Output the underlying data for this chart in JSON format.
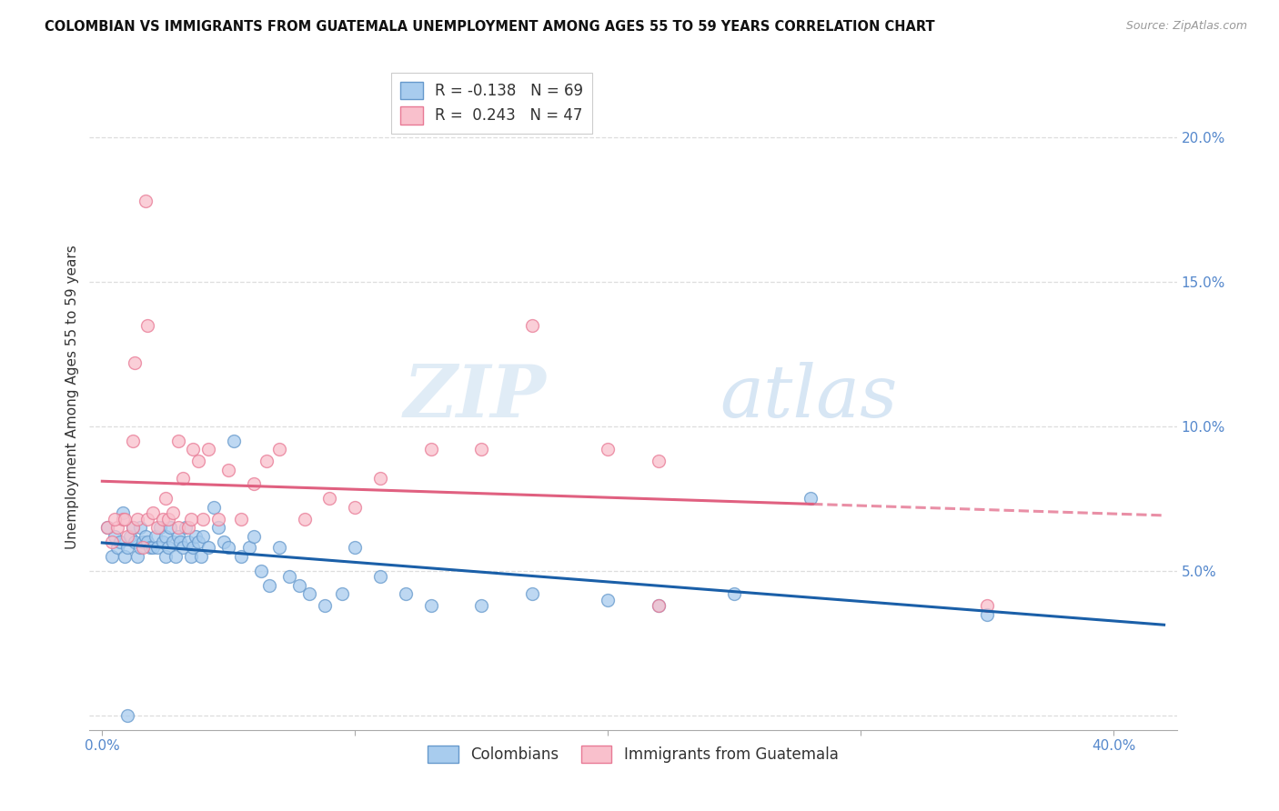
{
  "title": "COLOMBIAN VS IMMIGRANTS FROM GUATEMALA UNEMPLOYMENT AMONG AGES 55 TO 59 YEARS CORRELATION CHART",
  "source": "Source: ZipAtlas.com",
  "xlabel_ticks": [
    "0.0%",
    "",
    "",
    "",
    "40.0%"
  ],
  "xlabel_tick_vals": [
    0.0,
    0.1,
    0.2,
    0.3,
    0.4
  ],
  "ylabel": "Unemployment Among Ages 55 to 59 years",
  "ylabel_ticks": [
    "20.0%",
    "15.0%",
    "10.0%",
    "5.0%",
    ""
  ],
  "ylabel_tick_vals": [
    0.2,
    0.15,
    0.1,
    0.05,
    0.0
  ],
  "ylim": [
    -0.005,
    0.225
  ],
  "xlim": [
    -0.005,
    0.425
  ],
  "colombians_R": -0.138,
  "colombians_N": 69,
  "guatemala_R": 0.243,
  "guatemala_N": 47,
  "colombian_color": "#a8ccee",
  "colombian_edge": "#6699cc",
  "guatemala_color": "#f9c0cc",
  "guatemala_edge": "#e87a95",
  "colombian_line_color": "#1a5fa8",
  "guatemala_line_color": "#e06080",
  "watermark_zip": "ZIP",
  "watermark_atlas": "atlas",
  "colombians_x": [
    0.002,
    0.004,
    0.005,
    0.006,
    0.007,
    0.008,
    0.009,
    0.01,
    0.011,
    0.012,
    0.013,
    0.014,
    0.015,
    0.015,
    0.016,
    0.017,
    0.018,
    0.019,
    0.02,
    0.021,
    0.022,
    0.023,
    0.024,
    0.025,
    0.025,
    0.026,
    0.027,
    0.028,
    0.029,
    0.03,
    0.031,
    0.032,
    0.033,
    0.034,
    0.035,
    0.036,
    0.037,
    0.038,
    0.039,
    0.04,
    0.042,
    0.044,
    0.046,
    0.048,
    0.05,
    0.052,
    0.055,
    0.058,
    0.06,
    0.063,
    0.066,
    0.07,
    0.074,
    0.078,
    0.082,
    0.088,
    0.095,
    0.1,
    0.11,
    0.12,
    0.13,
    0.15,
    0.17,
    0.2,
    0.22,
    0.25,
    0.28,
    0.35,
    0.01
  ],
  "colombians_y": [
    0.065,
    0.055,
    0.062,
    0.058,
    0.06,
    0.07,
    0.055,
    0.058,
    0.062,
    0.065,
    0.06,
    0.055,
    0.058,
    0.065,
    0.06,
    0.062,
    0.06,
    0.058,
    0.058,
    0.062,
    0.058,
    0.065,
    0.06,
    0.062,
    0.055,
    0.058,
    0.065,
    0.06,
    0.055,
    0.062,
    0.06,
    0.058,
    0.065,
    0.06,
    0.055,
    0.058,
    0.062,
    0.06,
    0.055,
    0.062,
    0.058,
    0.072,
    0.065,
    0.06,
    0.058,
    0.095,
    0.055,
    0.058,
    0.062,
    0.05,
    0.045,
    0.058,
    0.048,
    0.045,
    0.042,
    0.038,
    0.042,
    0.058,
    0.048,
    0.042,
    0.038,
    0.038,
    0.042,
    0.04,
    0.038,
    0.042,
    0.075,
    0.035,
    0.0
  ],
  "guatemala_x": [
    0.002,
    0.004,
    0.006,
    0.008,
    0.01,
    0.012,
    0.014,
    0.016,
    0.018,
    0.02,
    0.022,
    0.024,
    0.026,
    0.028,
    0.03,
    0.032,
    0.034,
    0.036,
    0.038,
    0.04,
    0.042,
    0.046,
    0.05,
    0.055,
    0.06,
    0.065,
    0.07,
    0.08,
    0.09,
    0.1,
    0.11,
    0.13,
    0.15,
    0.17,
    0.2,
    0.22,
    0.005,
    0.009,
    0.013,
    0.017,
    0.025,
    0.03,
    0.035,
    0.012,
    0.018,
    0.22,
    0.35
  ],
  "guatemala_y": [
    0.065,
    0.06,
    0.065,
    0.068,
    0.062,
    0.065,
    0.068,
    0.058,
    0.068,
    0.07,
    0.065,
    0.068,
    0.068,
    0.07,
    0.065,
    0.082,
    0.065,
    0.092,
    0.088,
    0.068,
    0.092,
    0.068,
    0.085,
    0.068,
    0.08,
    0.088,
    0.092,
    0.068,
    0.075,
    0.072,
    0.082,
    0.092,
    0.092,
    0.135,
    0.092,
    0.088,
    0.068,
    0.068,
    0.122,
    0.178,
    0.075,
    0.095,
    0.068,
    0.095,
    0.135,
    0.038,
    0.038
  ],
  "marker_size": 100,
  "grid_color": "#dddddd",
  "tick_color": "#5588cc",
  "title_fontsize": 10.5,
  "axis_label_fontsize": 11,
  "tick_fontsize": 11
}
